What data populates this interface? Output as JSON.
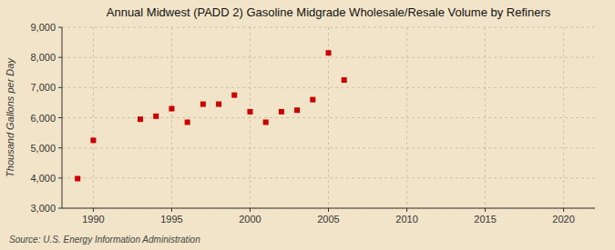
{
  "chart_data": {
    "type": "scatter",
    "title": "Annual Midwest (PADD 2) Gasoline Midgrade Wholesale/Resale Volume by Refiners",
    "y_label": "Thousand Gallons per Day",
    "source": "Source: U.S. Energy Information Administration",
    "x": [
      1989,
      1990,
      1993,
      1994,
      1995,
      1996,
      1997,
      1998,
      1999,
      2000,
      2001,
      2002,
      2003,
      2004,
      2005,
      2006
    ],
    "values": [
      3980,
      5250,
      5950,
      6050,
      6300,
      5850,
      6450,
      6450,
      6750,
      6200,
      5850,
      6200,
      6250,
      6600,
      8150,
      7250
    ],
    "color": "#cc0000",
    "marker": "square",
    "xlim": [
      1988,
      2022
    ],
    "ylim": [
      3000,
      9000
    ],
    "xticks": [
      1990,
      1995,
      2000,
      2005,
      2010,
      2015,
      2020
    ],
    "yticks": [
      {
        "value": 3000,
        "label": "3,000"
      },
      {
        "value": 4000,
        "label": "4,000"
      },
      {
        "value": 5000,
        "label": "5,000"
      },
      {
        "value": 6000,
        "label": "6,000"
      },
      {
        "value": 7000,
        "label": "7,000"
      },
      {
        "value": 8000,
        "label": "8,000"
      },
      {
        "value": 9000,
        "label": "9,000"
      }
    ],
    "grid": true
  }
}
